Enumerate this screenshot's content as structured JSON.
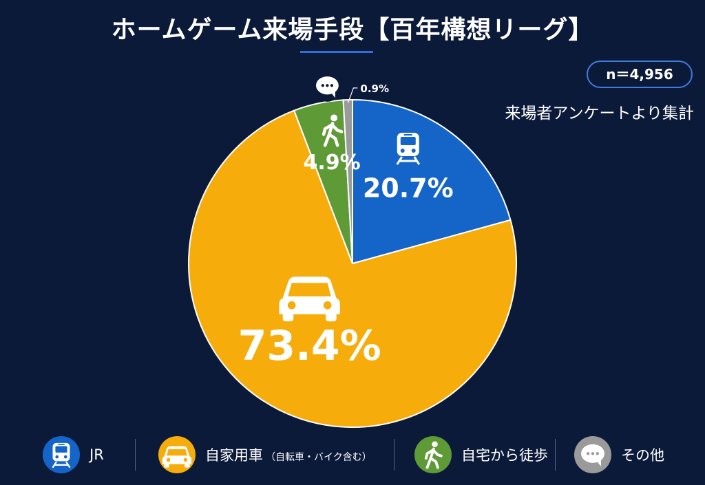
{
  "title": "ホームゲーム来場手段【百年構想リーグ】",
  "sample": "n＝4,956",
  "source": "来場者アンケートより集計",
  "colors": {
    "background": "#0c1a3a",
    "jr": "#1565c8",
    "car": "#f6ad0b",
    "walk": "#5e9a36",
    "other": "#9a9a9a"
  },
  "chart_data": {
    "type": "pie",
    "slices": [
      {
        "key": "jr",
        "label": "JR",
        "value": 20.7,
        "value_label": "20.7%",
        "color": "#1565c8",
        "icon": "train-icon"
      },
      {
        "key": "car",
        "label": "自家用車",
        "note": "（自転車・バイク含む）",
        "value": 73.4,
        "value_label": "73.4%",
        "color": "#f6ad0b",
        "icon": "car-icon"
      },
      {
        "key": "walk",
        "label": "自宅から徒歩",
        "value": 4.9,
        "value_label": "4.9%",
        "color": "#5e9a36",
        "icon": "walking-person-icon"
      },
      {
        "key": "other",
        "label": "その他",
        "value": 0.9,
        "value_label": "0.9%",
        "color": "#9a9a9a",
        "icon": "speech-bubble-icon"
      }
    ]
  },
  "legend": [
    {
      "label": "JR",
      "icon": "train-icon"
    },
    {
      "label": "自家用車",
      "note": "（自転車・バイク含む）",
      "icon": "car-icon"
    },
    {
      "label": "自宅から徒歩",
      "icon": "walking-person-icon"
    },
    {
      "label": "その他",
      "icon": "speech-bubble-icon"
    }
  ]
}
